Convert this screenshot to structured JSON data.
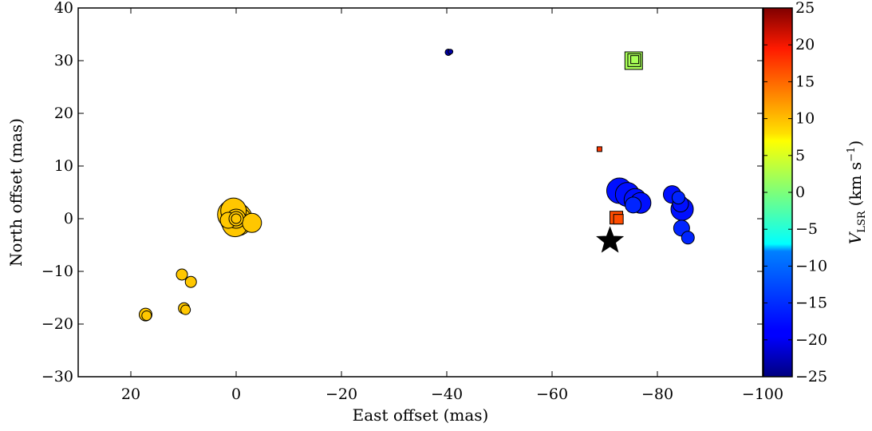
{
  "chart_data": {
    "type": "scatter",
    "xlabel": "East offset (mas)",
    "ylabel": "North offset (mas)",
    "xlim": [
      30,
      -100
    ],
    "ylim": [
      -30,
      40
    ],
    "x_ticks": [
      20,
      0,
      -20,
      -40,
      -60,
      -80,
      -100
    ],
    "y_ticks": [
      -30,
      -20,
      -10,
      0,
      10,
      20,
      30,
      40
    ],
    "grid": false,
    "colorbar": {
      "label_main": "V",
      "label_sub": "LSR",
      "label_unit_open": "(km s",
      "label_unit_exp": "−1",
      "label_unit_close": ")",
      "vmin": -25,
      "vmax": 25,
      "ticks": [
        25,
        20,
        15,
        10,
        5,
        0,
        -5,
        -10,
        -15,
        -20,
        -25
      ],
      "colormap": "jet"
    },
    "points": [
      {
        "x": 0.5,
        "y": 1.5,
        "v": 9,
        "size": 16,
        "marker": "circle"
      },
      {
        "x": 0.8,
        "y": 0.8,
        "v": 9,
        "size": 18,
        "marker": "circle"
      },
      {
        "x": 0.0,
        "y": 0.0,
        "v": 9,
        "size": 20,
        "marker": "circle"
      },
      {
        "x": -0.3,
        "y": -0.5,
        "v": 9,
        "size": 18,
        "marker": "circle"
      },
      {
        "x": 0.2,
        "y": -1.0,
        "v": 9,
        "size": 16,
        "marker": "circle"
      },
      {
        "x": 0.0,
        "y": 0.0,
        "v": 9,
        "size": 12,
        "marker": "circle"
      },
      {
        "x": 0.0,
        "y": 0.0,
        "v": 9,
        "size": 9,
        "marker": "circle"
      },
      {
        "x": 0.0,
        "y": 0.0,
        "v": 9,
        "size": 6,
        "marker": "circle"
      },
      {
        "x": 1.5,
        "y": -0.3,
        "v": 9,
        "size": 10,
        "marker": "circle"
      },
      {
        "x": -3.0,
        "y": -0.8,
        "v": 9,
        "size": 12,
        "marker": "circle"
      },
      {
        "x": 10.3,
        "y": -10.6,
        "v": 9,
        "size": 7,
        "marker": "circle"
      },
      {
        "x": 8.6,
        "y": -12.0,
        "v": 9,
        "size": 7,
        "marker": "circle"
      },
      {
        "x": 9.9,
        "y": -17.0,
        "v": 9,
        "size": 7,
        "marker": "circle"
      },
      {
        "x": 9.6,
        "y": -17.3,
        "v": 9,
        "size": 6,
        "marker": "circle"
      },
      {
        "x": 17.2,
        "y": -18.2,
        "v": 9,
        "size": 8,
        "marker": "circle"
      },
      {
        "x": 17.0,
        "y": -18.4,
        "v": 9,
        "size": 6,
        "marker": "circle"
      },
      {
        "x": -40.3,
        "y": 31.6,
        "v": -23,
        "size": 4,
        "marker": "circle"
      },
      {
        "x": -40.7,
        "y": 31.7,
        "v": -23,
        "size": 3,
        "marker": "circle"
      },
      {
        "x": -75.5,
        "y": 30.0,
        "v": 2,
        "size": 11,
        "marker": "square"
      },
      {
        "x": -75.6,
        "y": 30.1,
        "v": 2,
        "size": 8,
        "marker": "square"
      },
      {
        "x": -75.7,
        "y": 30.2,
        "v": 2,
        "size": 5,
        "marker": "square"
      },
      {
        "x": -69.0,
        "y": 13.2,
        "v": 16,
        "size": 3,
        "marker": "square"
      },
      {
        "x": -72.2,
        "y": 0.2,
        "v": 15,
        "size": 8,
        "marker": "square"
      },
      {
        "x": -72.6,
        "y": -0.1,
        "v": 15,
        "size": 6,
        "marker": "square"
      },
      {
        "x": -72.8,
        "y": 5.3,
        "v": -18,
        "size": 16,
        "marker": "circle"
      },
      {
        "x": -74.3,
        "y": 4.6,
        "v": -18,
        "size": 15,
        "marker": "circle"
      },
      {
        "x": -75.8,
        "y": 3.6,
        "v": -18,
        "size": 14,
        "marker": "circle"
      },
      {
        "x": -76.8,
        "y": 3.0,
        "v": -18,
        "size": 13,
        "marker": "circle"
      },
      {
        "x": -75.4,
        "y": 2.6,
        "v": -17,
        "size": 10,
        "marker": "circle"
      },
      {
        "x": -82.8,
        "y": 4.6,
        "v": -18,
        "size": 11,
        "marker": "circle"
      },
      {
        "x": -84.0,
        "y": 4.0,
        "v": -17,
        "size": 8,
        "marker": "circle"
      },
      {
        "x": -84.4,
        "y": 2.8,
        "v": -18,
        "size": 10,
        "marker": "circle"
      },
      {
        "x": -84.7,
        "y": 1.8,
        "v": -18,
        "size": 14,
        "marker": "circle"
      },
      {
        "x": -84.6,
        "y": -1.8,
        "v": -17,
        "size": 10,
        "marker": "circle"
      },
      {
        "x": -85.8,
        "y": -3.6,
        "v": -17,
        "size": 8,
        "marker": "circle"
      },
      {
        "x": -71.0,
        "y": -4.2,
        "v": null,
        "size": 17,
        "marker": "star"
      }
    ]
  }
}
